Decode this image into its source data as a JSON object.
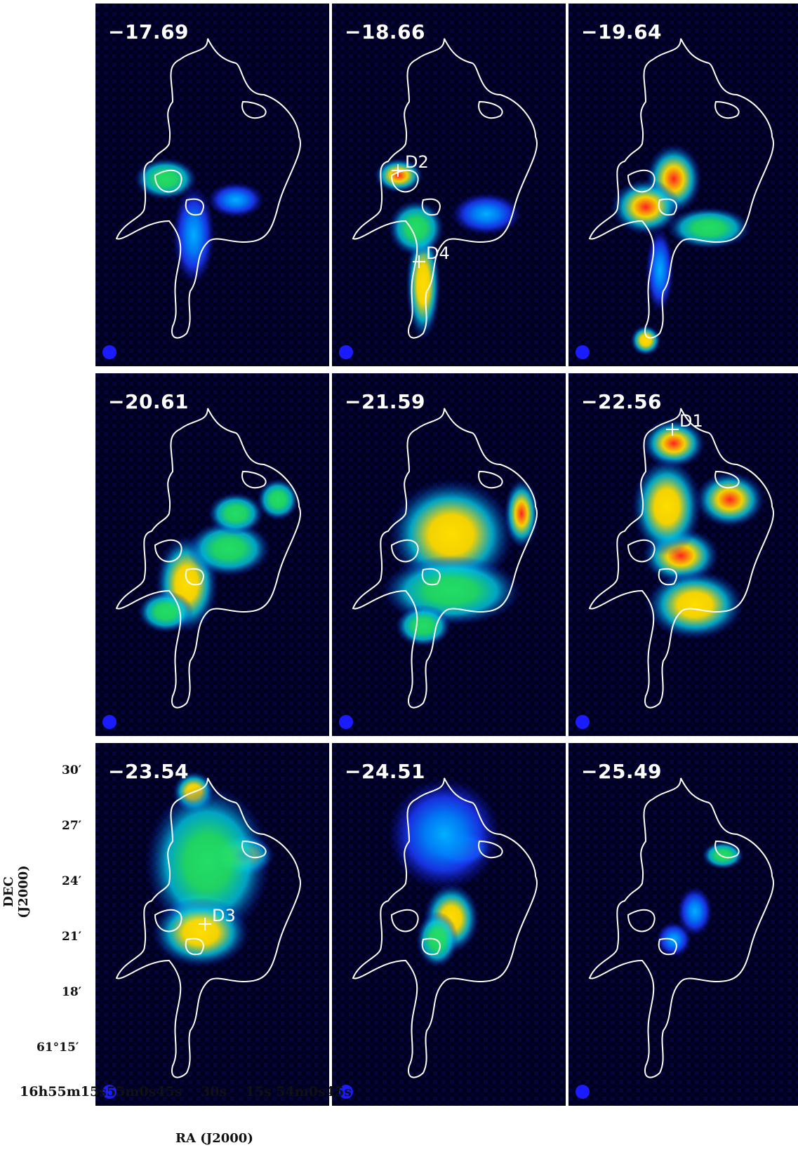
{
  "figure": {
    "panels": [
      {
        "velocity": "−17.69",
        "markers": []
      },
      {
        "velocity": "−18.66",
        "markers": [
          {
            "label": "D2"
          },
          {
            "label": "D4"
          }
        ]
      },
      {
        "velocity": "−19.64",
        "markers": []
      },
      {
        "velocity": "−20.61",
        "markers": []
      },
      {
        "velocity": "−21.59",
        "markers": []
      },
      {
        "velocity": "−22.56",
        "markers": [
          {
            "label": "D1"
          }
        ]
      },
      {
        "velocity": "−23.54",
        "markers": [
          {
            "label": "D3"
          }
        ]
      },
      {
        "velocity": "−24.51",
        "markers": []
      },
      {
        "velocity": "−25.49",
        "markers": []
      }
    ],
    "dec_ticks": [
      "30′",
      "27′",
      "24′",
      "21′",
      "18′",
      "61°15′"
    ],
    "ra_ticks": "16h55m15s55m0s45s    30s    15s 54m0s45s",
    "xlabel": "RA (J2000)",
    "ylabel": "DEC (J2000)",
    "colors": {
      "background": "#000010",
      "low": "#1b1bff",
      "mid": "#22dd66",
      "high": "#ff2020",
      "contour": "#ffffff"
    }
  }
}
